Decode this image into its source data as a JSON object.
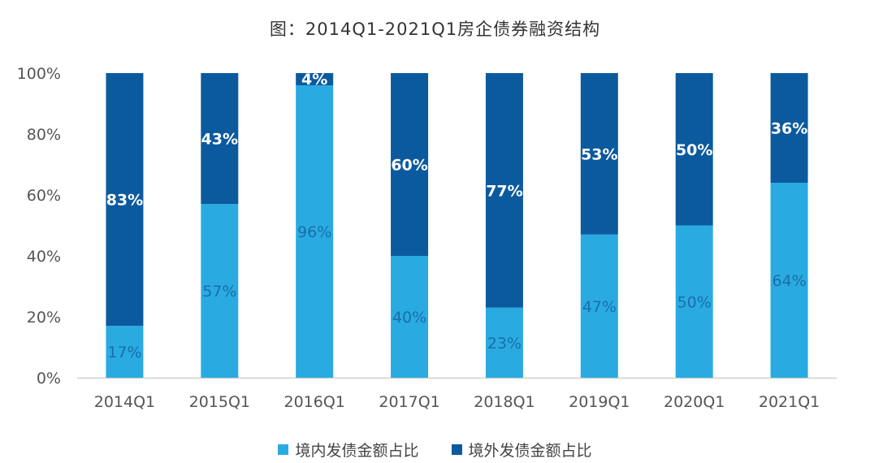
{
  "chart_data": {
    "type": "bar",
    "stacked": true,
    "title": "图：2014Q1-2021Q1房企债券融资结构",
    "categories": [
      "2014Q1",
      "2015Q1",
      "2016Q1",
      "2017Q1",
      "2018Q1",
      "2019Q1",
      "2020Q1",
      "2021Q1"
    ],
    "series": [
      {
        "name": "境内发债金额占比",
        "color": "#29abe2",
        "values": [
          17,
          57,
          96,
          40,
          23,
          47,
          50,
          64
        ],
        "labels": [
          "17%",
          "57%",
          "96%",
          "40%",
          "23%",
          "47%",
          "50%",
          "64%"
        ]
      },
      {
        "name": "境外发债金额占比",
        "color": "#0c5a9e",
        "values": [
          83,
          43,
          4,
          60,
          77,
          53,
          50,
          36
        ],
        "labels": [
          "83%",
          "43%",
          "4%",
          "60%",
          "77%",
          "53%",
          "50%",
          "36%"
        ]
      }
    ],
    "ylim": [
      0,
      100
    ],
    "yticks": [
      "0%",
      "20%",
      "40%",
      "60%",
      "80%",
      "100%"
    ],
    "grid": false,
    "legend_position": "bottom"
  }
}
